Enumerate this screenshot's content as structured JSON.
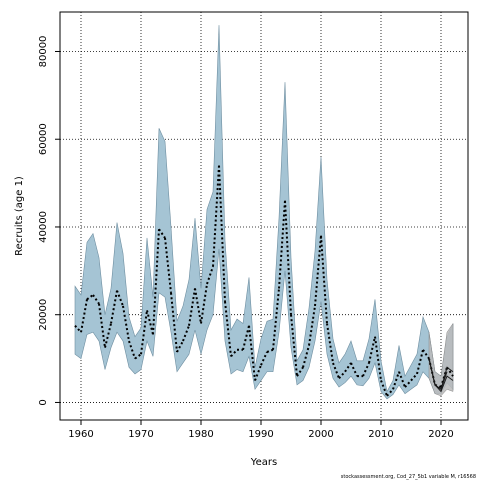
{
  "chart_data": {
    "type": "line",
    "xlabel": "Years",
    "ylabel": "Recruits (age 1)",
    "credit": "stockassessment.org, Cod_27_5b1 variable M, r16568",
    "xlim": [
      1956.5,
      2024.5
    ],
    "ylim": [
      -4000,
      89000
    ],
    "x_ticks": [
      1960,
      1970,
      1980,
      1990,
      2000,
      2010,
      2020
    ],
    "y_ticks": [
      0,
      20000,
      40000,
      60000,
      80000
    ],
    "grid": true,
    "colors": {
      "ci_band": "#a5c4d4",
      "ci_band_outline": "#6e8ea0",
      "retro_band": "#bbbbbb",
      "estimate_line": "#000000",
      "retro_line": "#1a1a1a"
    },
    "series": [
      {
        "x": [
          1959,
          1960,
          1961,
          1962,
          1963,
          1964,
          1965,
          1966,
          1967,
          1968,
          1969,
          1970,
          1971,
          1972,
          1973,
          1974,
          1975,
          1976,
          1977,
          1978,
          1979,
          1980,
          1981,
          1982,
          1983,
          1984,
          1985,
          1986,
          1987,
          1988,
          1989,
          1990,
          1991,
          1992,
          1993,
          1994,
          1995,
          1996,
          1997,
          1998,
          1999,
          2000,
          2001,
          2002,
          2003,
          2004,
          2005,
          2006,
          2007,
          2008,
          2009,
          2010,
          2011,
          2012,
          2013,
          2014,
          2015,
          2016,
          2017,
          2018,
          2019,
          2020,
          2021,
          2022
        ],
        "estimate": [
          17500,
          16000,
          23500,
          24500,
          22500,
          12500,
          18000,
          25500,
          22000,
          14000,
          10000,
          11000,
          21000,
          15500,
          39500,
          37500,
          25000,
          11500,
          14000,
          17500,
          26000,
          18000,
          27000,
          31000,
          54000,
          23000,
          10500,
          12000,
          12000,
          17500,
          5000,
          8500,
          11500,
          12000,
          26000,
          46000,
          20000,
          6000,
          8000,
          13000,
          22000,
          38000,
          18000,
          9000,
          5500,
          7000,
          9000,
          6000,
          6000,
          9000,
          15000,
          5000,
          1500,
          3000,
          7000,
          3500,
          5000,
          6500,
          12000,
          10000,
          4000,
          3500,
          8000,
          6000
        ],
        "lower": [
          11000,
          10000,
          15500,
          16000,
          14000,
          7500,
          12500,
          16000,
          14000,
          8000,
          6500,
          7500,
          14000,
          10500,
          25000,
          24000,
          16000,
          7000,
          9000,
          11000,
          16500,
          11000,
          16500,
          20000,
          35000,
          14000,
          6500,
          7500,
          7000,
          10500,
          3000,
          5000,
          7000,
          7000,
          16000,
          30000,
          12500,
          4000,
          5000,
          8000,
          14000,
          23000,
          11000,
          5500,
          3500,
          4500,
          6000,
          4000,
          3800,
          5500,
          9000,
          2500,
          800,
          1800,
          4000,
          2000,
          3000,
          4000,
          7000,
          5500,
          2000,
          2000,
          4500,
          3000
        ],
        "upper": [
          26500,
          24500,
          36500,
          38500,
          33000,
          20000,
          26000,
          41000,
          34000,
          19500,
          15000,
          17000,
          37500,
          24000,
          62500,
          59500,
          40000,
          18500,
          22000,
          28000,
          42000,
          26000,
          44000,
          48000,
          86000,
          37000,
          16500,
          19000,
          18000,
          28500,
          8000,
          14500,
          18500,
          19000,
          42000,
          73000,
          33000,
          9500,
          12000,
          21500,
          34500,
          56000,
          28000,
          14500,
          9000,
          11000,
          14000,
          9500,
          9500,
          14500,
          23500,
          9500,
          2500,
          5000,
          13000,
          6000,
          8500,
          11000,
          19500,
          16000,
          7000,
          6000,
          15000,
          18000
        ]
      },
      {
        "x": [
          2018,
          2019,
          2020,
          2021,
          2022
        ],
        "estimate": [
          10000,
          4000,
          3000,
          8000,
          7000
        ],
        "lower": [
          5500,
          2000,
          1500,
          3000,
          2500
        ],
        "upper": [
          16000,
          7000,
          6000,
          16000,
          18000
        ]
      },
      {
        "x": [
          2018,
          2019,
          2020,
          2021,
          2022
        ],
        "estimate": [
          10000,
          4000,
          2500,
          6000,
          5000
        ]
      },
      {
        "x": [
          2018,
          2019,
          2020,
          2021
        ],
        "estimate": [
          10000,
          4000,
          3000,
          7000
        ]
      }
    ]
  }
}
